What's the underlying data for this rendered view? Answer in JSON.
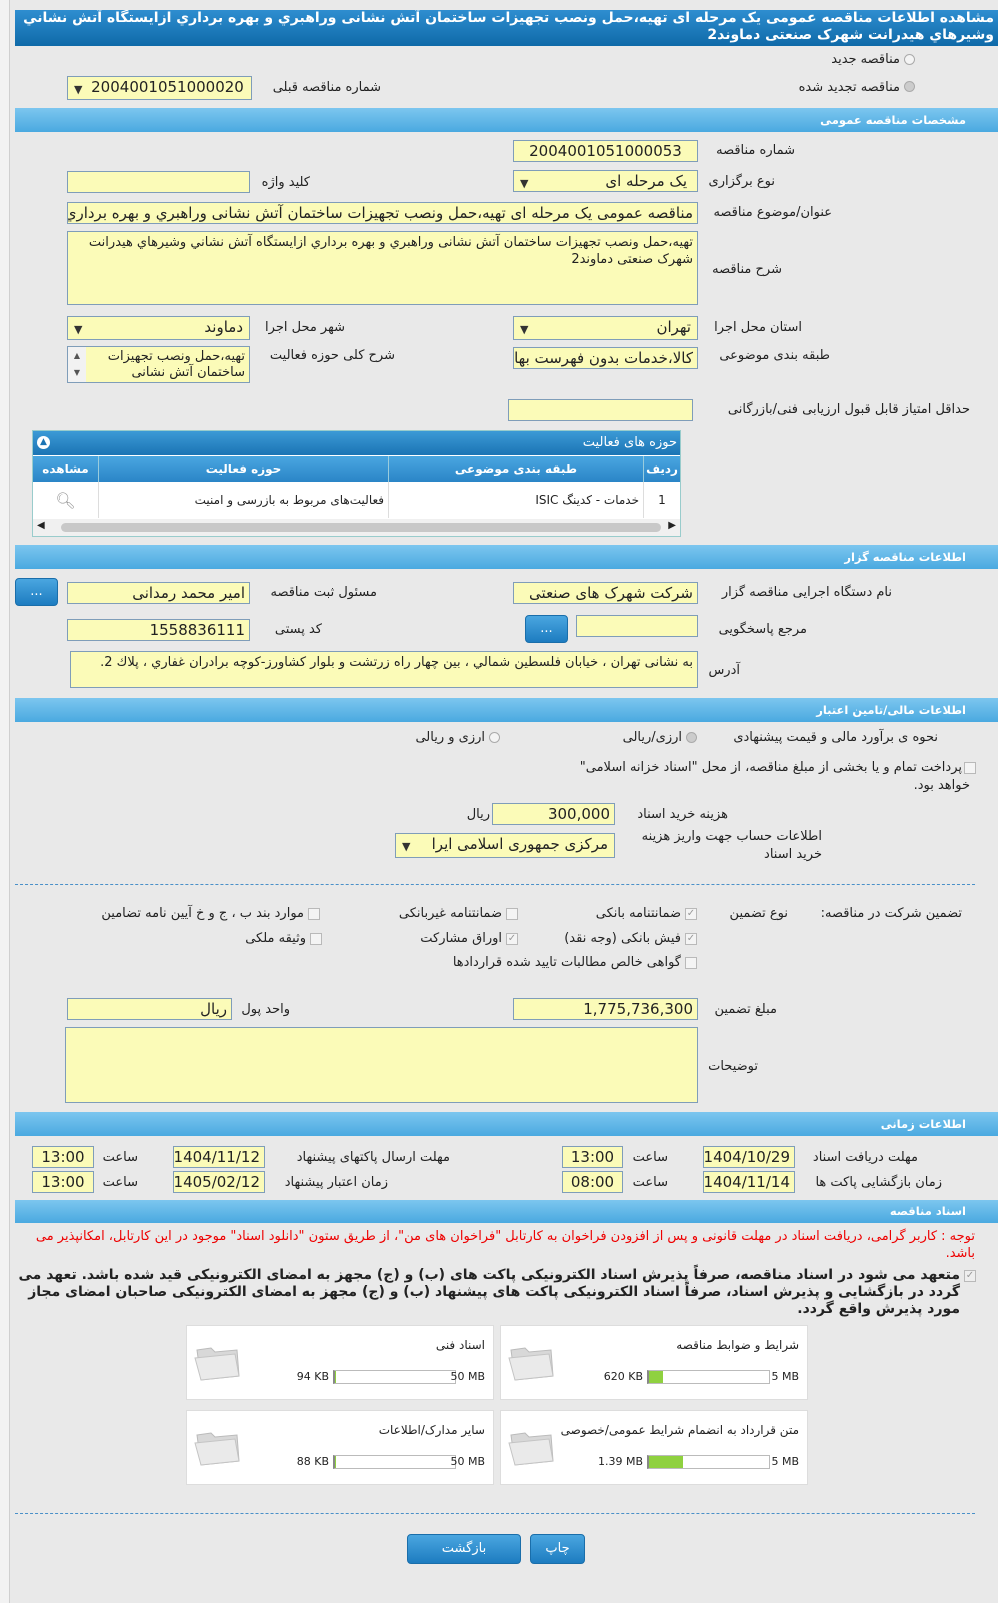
{
  "header": {
    "title": "مشاهده اطلاعات مناقصه عمومی یک مرحله ای تهیه،حمل ونصب تجهیزات ساختمان آتش نشانی وراهبري و بهره برداري ازایستگاه آتش نشاني وشيرهاي هيدرانت شهرک صنعتی دماوند2"
  },
  "tender_type": {
    "new_label": "مناقصه جدید",
    "renewed_label": "مناقصه تجدید شده",
    "selected": "renewed",
    "prev_label": "شماره مناقصه قبلی",
    "prev_value": "2004001051000020"
  },
  "general": {
    "section": "مشخصات مناقصه عمومی",
    "number_label": "شماره مناقصه",
    "number": "2004001051000053",
    "type_label": "نوع برگزاری",
    "type": "یک مرحله ای",
    "keyword_label": "کلید واژه",
    "keyword": "",
    "title_label": "عنوان/موضوع مناقصه",
    "title": "مناقصه عمومی یک مرحله ای تهیه،حمل ونصب تجهیزات ساختمان آتش نشانی وراهبري و بهره برداري ازایستگاه آتش نشاني",
    "desc_label": "شرح مناقصه",
    "desc": "تهیه،حمل ونصب تجهیزات ساختمان آتش نشانی وراهبري و بهره برداري  ازایستگاه آتش نشاني وشيرهاي هيدرانت شهرک صنعتی دماوند2",
    "province_label": "استان محل اجرا",
    "province": "تهران",
    "city_label": "شهر محل اجرا",
    "city": "دماوند",
    "category_label": "طبقه بندی موضوعی",
    "category": "کالا،خدمات بدون فهرست بها",
    "scope_label": "شرح کلی حوزه فعالیت",
    "scope": "تهیه،حمل ونصب تجهیزات ساختمان آتش نشانی",
    "min_score_label": "حداقل امتیاز قابل قبول ارزیابی فنی/بازرگانی",
    "min_score": ""
  },
  "activities": {
    "title": "حوزه های فعالیت",
    "columns": [
      "ردیف",
      "طبقه بندی موضوعی",
      "حوزه فعالیت",
      "مشاهده"
    ],
    "rows": [
      {
        "index": "1",
        "category": "خدمات - کدینگ ISIC",
        "field": "فعالیت‌های مربوط به بازرسی و امنیت"
      }
    ]
  },
  "organizer": {
    "section": "اطلاعات مناقصه گزار",
    "org_label": "نام دستگاه اجرایی مناقصه گزار",
    "org": "شرکت شهرک های صنعتی",
    "resp_label": "مسئول ثبت مناقصه",
    "resp": "امیر محمد  رمدانی",
    "ref_label": "مرجع پاسخگویی",
    "ref": "",
    "postal_label": "کد پستی",
    "postal": "1558836111",
    "address_label": "آدرس",
    "address": "به نشانی تهران ، خيابان فلسطين شمالي ، بين چهار راه زرتشت و بلوار كشاورز-كوچه برادران غفاري ، پلاك 2.",
    "more_button": "..."
  },
  "finance": {
    "section": "اطلاعات مالی/تامین اعتبار",
    "method_label": "نحوه ی برآورد مالی و قیمت پیشنهادی",
    "opt1": "ارزی/ریالی",
    "opt2": "ارزی و ریالی",
    "treasury_text": "پرداخت تمام و یا بخشی از مبلغ مناقصه، از محل \"اسناد خزانه اسلامی\"",
    "treasury_text2": "خواهد بود.",
    "doc_fee_label": "هزینه خرید اسناد",
    "doc_fee": "300,000",
    "doc_fee_unit": "ریال",
    "account_label": "اطلاعات حساب جهت واریز هزینه خرید اسناد",
    "account": "مرکزی جمهوری اسلامی ایرا"
  },
  "guarantee": {
    "label": "تضمین شرکت در مناقصه:",
    "type_label": "نوع تضمین",
    "options": [
      {
        "label": "ضمانتنامه بانکی",
        "checked": true
      },
      {
        "label": "ضمانتنامه غیربانکی",
        "checked": false
      },
      {
        "label": "موارد بند ب ، ج و خ آیین نامه تضامین",
        "checked": false
      },
      {
        "label": "فیش بانکی (وجه نقد)",
        "checked": true
      },
      {
        "label": "اوراق مشارکت",
        "checked": true
      },
      {
        "label": "وثیقه ملکی",
        "checked": false
      },
      {
        "label": "گواهی خالص مطالبات تایید شده قراردادها",
        "checked": false
      }
    ],
    "amount_label": "مبلغ تضمین",
    "amount": "1,775,736,300",
    "currency_label": "واحد پول",
    "currency": "ریال",
    "notes_label": "توضیحات",
    "notes": ""
  },
  "timing": {
    "section": "اطلاعات زمانی",
    "time_label": "ساعت",
    "doc_deadline_label": "مهلت دریافت اسناد",
    "doc_deadline": "1404/10/29",
    "doc_deadline_time": "13:00",
    "submit_label": "مهلت ارسال پاکتهای پیشنهاد",
    "submit": "1404/11/12",
    "submit_time": "13:00",
    "open_label": "زمان بازگشایی پاکت ها",
    "open": "1404/11/14",
    "open_time": "08:00",
    "validity_label": "زمان اعتبار پیشنهاد",
    "validity": "1405/02/12",
    "validity_time": "13:00"
  },
  "documents": {
    "section": "اسناد مناقصه",
    "notice": "توجه : کاربر گرامی، دریافت اسناد در مهلت قانونی و پس از افزودن فراخوان به کارتابل \"فراخوان های من\"، از طریق ستون \"دانلود اسناد\" موجود در این کارتابل، امکانپذیر می باشد.",
    "commitment": "متعهد می شود در اسناد مناقصه، صرفاً پذیرش اسناد الکترونیکی پاکت های (ب) و (ج) مجهز به امضای الکترونیکی قید شده باشد. تعهد می گردد در بازگشایی و پذیرش اسناد، صرفاً اسناد الکترونیکی پاکت های پیشنهاد (ب) و (ج) مجهز به امضای الکترونیکی صاحبان امضای مجاز مورد پذیرش واقع گردد.",
    "files": [
      {
        "title": "شرایط و ضوابط مناقصه",
        "size": "620 KB",
        "max": "5 MB",
        "percent": 12
      },
      {
        "title": "اسناد فنی",
        "size": "94 KB",
        "max": "50 MB",
        "percent": 0.2
      },
      {
        "title": "متن قرارداد به انضمام شرایط عمومی/خصوصی",
        "size": "1.39 MB",
        "max": "5 MB",
        "percent": 28
      },
      {
        "title": "سایر مدارک/اطلاعات",
        "size": "88 KB",
        "max": "50 MB",
        "percent": 0.2
      }
    ]
  },
  "buttons": {
    "back": "بازگشت",
    "print": "چاپ"
  },
  "colors": {
    "header": "#1f7fbf",
    "section": "#5db4e6",
    "field": "#fbfbb8",
    "notice": "#e00000",
    "progress": "#8fd13f"
  }
}
